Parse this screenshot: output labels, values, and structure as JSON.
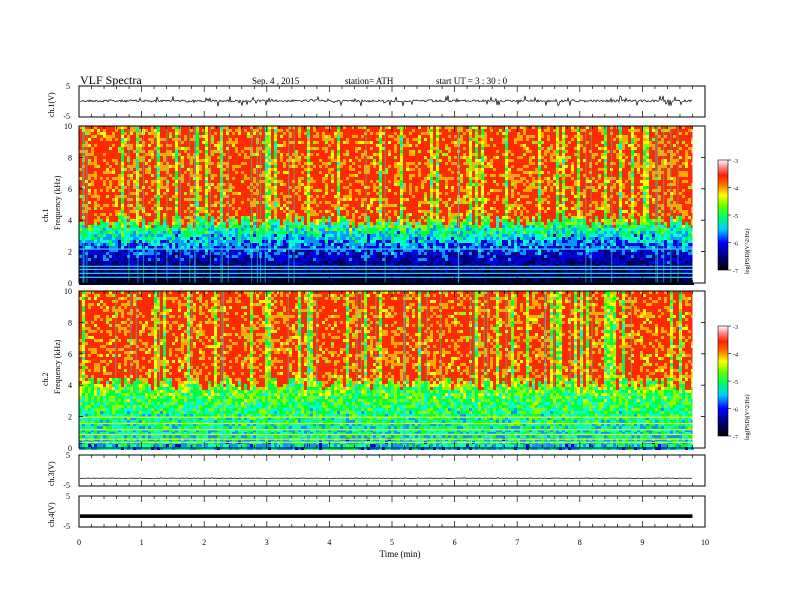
{
  "header": {
    "title": "VLF  Spectra",
    "date": "Sep. 4  , 2015",
    "station": "station= ATH",
    "start": "start  UT  =   3  : 30 : 0"
  },
  "chart_data": [
    {
      "type": "line",
      "panel": "ch1-waveform",
      "ylabel": "ch.1(V)",
      "ylim": [
        -5,
        5
      ],
      "yticks": [
        "5",
        "-5"
      ],
      "baseline": 0.2,
      "amplitude": "large-bursty"
    },
    {
      "type": "heatmap",
      "panel": "ch1-spectrogram",
      "ylabel_channel": "ch.1",
      "ylabel": "Frequency  (kHz)",
      "ylim": [
        0,
        10
      ],
      "yticks": [
        "0",
        "2",
        "4",
        "6",
        "8",
        "10"
      ],
      "colorbar": {
        "label": "log(PSD)(V^2/Hz)",
        "range": [
          -7,
          -3
        ],
        "ticks": [
          "-3",
          "-4",
          "-5",
          "-6",
          "-7"
        ]
      },
      "boundary_khz": 4.0
    },
    {
      "type": "heatmap",
      "panel": "ch2-spectrogram",
      "ylabel_channel": "ch.2",
      "ylabel": "Frequency  (kHz)",
      "ylim": [
        0,
        10
      ],
      "yticks": [
        "0",
        "2",
        "4",
        "6",
        "8",
        "10"
      ],
      "colorbar": {
        "label": "log(PSD)(V^2/Hz)",
        "range": [
          -7,
          -3
        ],
        "ticks": [
          "-3",
          "-4",
          "-5",
          "-6",
          "-7"
        ]
      },
      "boundary_khz": 4.2
    },
    {
      "type": "line",
      "panel": "ch3-waveform",
      "ylabel": "ch.3(V)",
      "ylim": [
        -5,
        5
      ],
      "yticks": [
        "5",
        "-5"
      ],
      "baseline": -2.5,
      "amplitude": "small"
    },
    {
      "type": "line",
      "panel": "ch4-waveform",
      "ylabel": "ch.4(V)",
      "ylim": [
        -5,
        5
      ],
      "yticks": [
        "5",
        "-5"
      ],
      "baseline": -1.5,
      "amplitude": "thick-flat"
    }
  ],
  "xaxis": {
    "label": "Time  (min)",
    "range": [
      0,
      10
    ],
    "data_end": 9.8,
    "ticks": [
      "0",
      "1",
      "2",
      "3",
      "4",
      "5",
      "6",
      "7",
      "8",
      "9",
      "10"
    ]
  }
}
